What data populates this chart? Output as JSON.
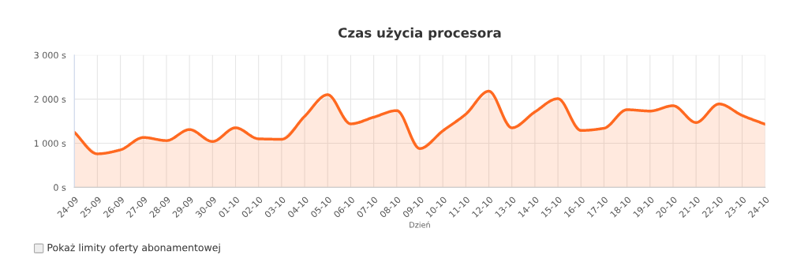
{
  "chart_data": {
    "type": "area",
    "title": "Czas użycia procesora",
    "xlabel": "Dzień",
    "categories": [
      "24-09",
      "25-09",
      "26-09",
      "27-09",
      "28-09",
      "29-09",
      "30-09",
      "01-10",
      "02-10",
      "03-10",
      "04-10",
      "05-10",
      "06-10",
      "07-10",
      "08-10",
      "09-10",
      "10-10",
      "11-10",
      "12-10",
      "13-10",
      "14-10",
      "15-10",
      "16-10",
      "17-10",
      "18-10",
      "19-10",
      "20-10",
      "21-10",
      "22-10",
      "23-10",
      "24-10"
    ],
    "series": [
      {
        "color": "#ff6920",
        "values": [
          1250,
          760,
          850,
          1130,
          1060,
          1310,
          1040,
          1350,
          1100,
          1090,
          1610,
          2100,
          1440,
          1590,
          1740,
          880,
          1280,
          1660,
          2180,
          1350,
          1710,
          2010,
          1290,
          1340,
          1760,
          1730,
          1850,
          1470,
          1890,
          1630,
          1430
        ]
      }
    ],
    "ylim": [
      0,
      3000
    ],
    "yticks": [
      {
        "value": 0,
        "label": "0 s"
      },
      {
        "value": 1000,
        "label": "1 000 s"
      },
      {
        "value": 2000,
        "label": "2 000 s"
      },
      {
        "value": 3000,
        "label": "3 000 s"
      }
    ],
    "grid": true,
    "marker": "none",
    "line_style": "solid",
    "annotations": [
      "Pokaż limity oferty abonamentowej"
    ]
  }
}
